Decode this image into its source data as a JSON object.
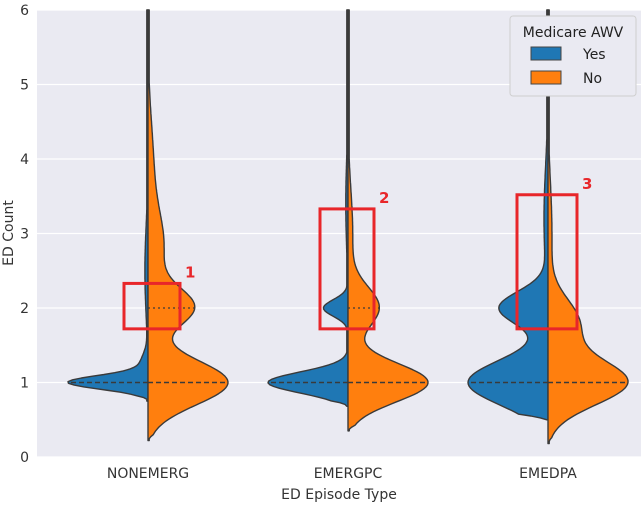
{
  "chart_data": {
    "type": "violin",
    "split": true,
    "xlabel": "ED Episode Type",
    "ylabel": "ED Count",
    "ylim": [
      0,
      6
    ],
    "yticks": [
      0,
      1,
      2,
      3,
      4,
      5,
      6
    ],
    "categories": [
      "NONEMERG",
      "EMERGPC",
      "EMEDPA"
    ],
    "grid": true,
    "background": "#eaeaf2",
    "legend": {
      "title": "Medicare AWV",
      "placement": "top-right",
      "entries": [
        {
          "label": "Yes",
          "color": "#1f77b4"
        },
        {
          "label": "No",
          "color": "#ff7f0e"
        }
      ]
    },
    "series": [
      {
        "name": "Yes",
        "color": "#1f77b4",
        "violins": [
          {
            "category": "NONEMERG",
            "min": 0.75,
            "max": 6,
            "median": 1,
            "q1": 1,
            "q3": 1
          },
          {
            "category": "EMERGPC",
            "min": 0.68,
            "max": 6,
            "median": 1,
            "q1": 1,
            "q3": 1
          },
          {
            "category": "EMEDPA",
            "min": 0.5,
            "max": 6,
            "median": 1,
            "q1": 1,
            "q3": 1
          }
        ]
      },
      {
        "name": "No",
        "color": "#ff7f0e",
        "violins": [
          {
            "category": "NONEMERG",
            "min": 0.22,
            "max": 6,
            "median": 1,
            "q1": 1,
            "q3": 2
          },
          {
            "category": "EMERGPC",
            "min": 0.35,
            "max": 6,
            "median": 1,
            "q1": 1,
            "q3": 2
          },
          {
            "category": "EMEDPA",
            "min": 0.18,
            "max": 6,
            "median": 1,
            "q1": 1,
            "q3": 1
          }
        ]
      }
    ],
    "annotations": [
      {
        "label": "1",
        "category": "NONEMERG",
        "y_range": [
          1.72,
          2.33
        ],
        "color": "#e8262a"
      },
      {
        "label": "2",
        "category": "EMERGPC",
        "y_range": [
          1.72,
          3.33
        ],
        "color": "#e8262a"
      },
      {
        "label": "3",
        "category": "EMEDPA",
        "y_range": [
          1.72,
          3.52
        ],
        "color": "#e8262a"
      }
    ]
  }
}
